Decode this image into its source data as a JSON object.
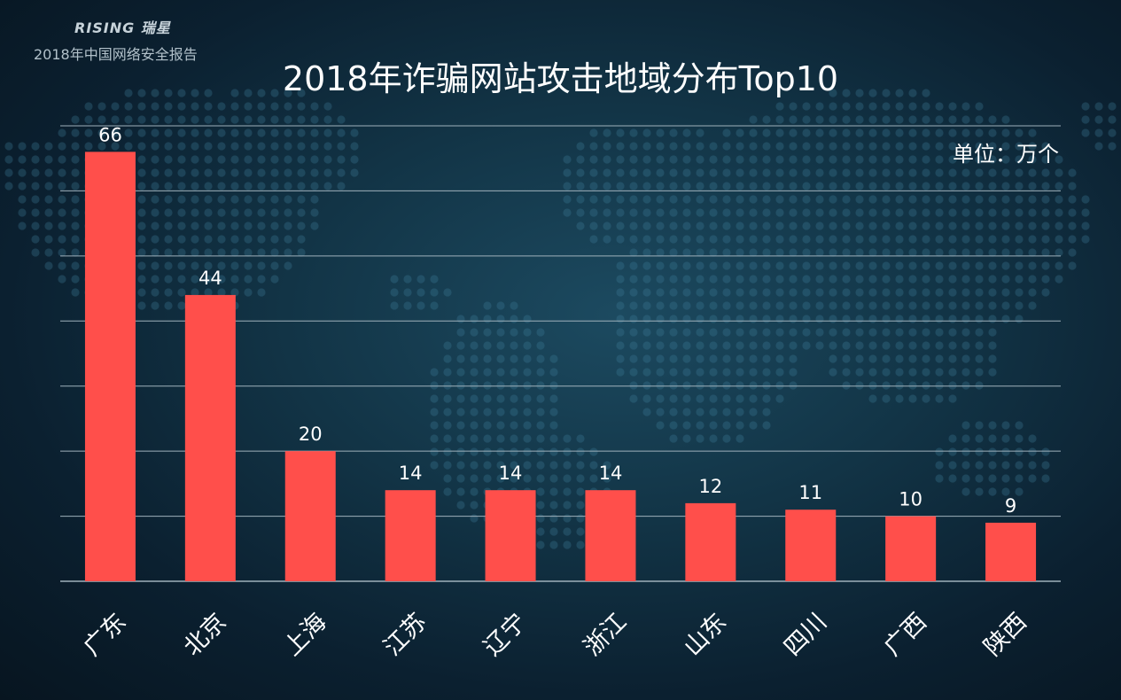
{
  "header": {
    "brand": "RISING 瑞星",
    "report": "2018年中国网络安全报告"
  },
  "colors": {
    "bar": "#ff4f4b",
    "grid": "#9fb1bb",
    "text": "#ffffff"
  },
  "chart_data": {
    "type": "bar",
    "title": "2018年诈骗网站攻击地域分布Top10",
    "unit_label": "单位：万个",
    "categories": [
      "广东",
      "北京",
      "上海",
      "江苏",
      "辽宁",
      "浙江",
      "山东",
      "四川",
      "广西",
      "陕西"
    ],
    "values": [
      66,
      44,
      20,
      14,
      14,
      14,
      12,
      11,
      10,
      9
    ],
    "ylim": [
      0,
      70
    ],
    "grid": true,
    "legend": "none"
  }
}
